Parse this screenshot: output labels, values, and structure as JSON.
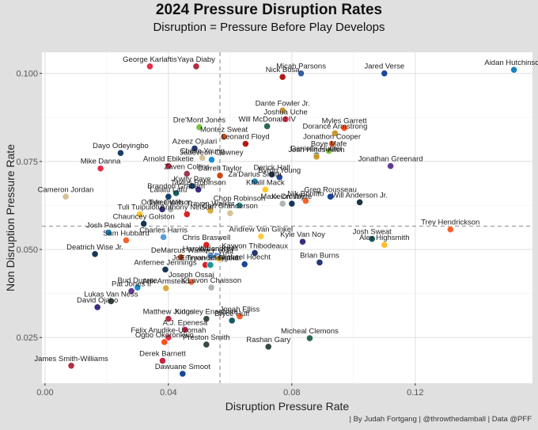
{
  "chart_data": {
    "type": "scatter",
    "title": "2024 Pressure Disruption Rates",
    "subtitle": "Disruption =  Pressure Before Play Develops",
    "xlabel": "Disruption Pressure Rate",
    "ylabel": "Non Disruption Pressure Rate",
    "caption": "| By Judah Fortgang | @throwthedamball | Data @PFF",
    "xlim": [
      -0.001,
      0.158
    ],
    "ylim": [
      0.012,
      0.106
    ],
    "x_ticks": [
      0.0,
      0.04,
      0.08,
      0.12
    ],
    "x_tick_labels": [
      "0.00",
      "0.04",
      "0.08",
      "0.12"
    ],
    "y_ticks": [
      0.025,
      0.05,
      0.075,
      0.1
    ],
    "y_tick_labels": [
      "0.025",
      "0.050",
      "0.075",
      "0.100"
    ],
    "grid": true,
    "reference_lines": {
      "x": 0.0567,
      "y": 0.0566,
      "style": "dashed"
    },
    "points": [
      {
        "name": "George Karlaftis",
        "x": 0.034,
        "y": 0.102,
        "color": "#e31837"
      },
      {
        "name": "Yaya Diaby",
        "x": 0.049,
        "y": 0.102,
        "color": "#a71930"
      },
      {
        "name": "Micah Parsons",
        "x": 0.083,
        "y": 0.1,
        "color": "#1f4e9c"
      },
      {
        "name": "Nick Bosa",
        "x": 0.077,
        "y": 0.099,
        "color": "#aa0000"
      },
      {
        "name": "Jared Verse",
        "x": 0.11,
        "y": 0.1,
        "color": "#003594"
      },
      {
        "name": "Aidan Hutchinson",
        "x": 0.152,
        "y": 0.101,
        "color": "#0076b6"
      },
      {
        "name": "Dante Fowler Jr.",
        "x": 0.077,
        "y": 0.0895,
        "color": "#c88a1a"
      },
      {
        "name": "Joshua Uche",
        "x": 0.078,
        "y": 0.087,
        "color": "#e31837"
      },
      {
        "name": "Myles Garrett",
        "x": 0.097,
        "y": 0.0845,
        "color": "#ff3c00"
      },
      {
        "name": "Dorance Armstrong",
        "x": 0.094,
        "y": 0.083,
        "color": "#c88a1a"
      },
      {
        "name": "Dre'Mont Jones",
        "x": 0.05,
        "y": 0.0847,
        "color": "#69be28"
      },
      {
        "name": "Will McDonald IV",
        "x": 0.072,
        "y": 0.085,
        "color": "#125740"
      },
      {
        "name": "Montez Sweat",
        "x": 0.058,
        "y": 0.082,
        "color": "#c83803"
      },
      {
        "name": "Leonard Floyd",
        "x": 0.065,
        "y": 0.08,
        "color": "#aa0000"
      },
      {
        "name": "Jonathon Cooper",
        "x": 0.093,
        "y": 0.08,
        "color": "#fb4f14"
      },
      {
        "name": "Boye Mafe",
        "x": 0.092,
        "y": 0.078,
        "color": "#69be28"
      },
      {
        "name": "Azeez Ojulari",
        "x": 0.0485,
        "y": 0.0787,
        "color": "#0b2265"
      },
      {
        "name": "Dayo Odeyingbo",
        "x": 0.0245,
        "y": 0.0774,
        "color": "#002c5f"
      },
      {
        "name": "Chase Young",
        "x": 0.051,
        "y": 0.076,
        "color": "#d3bc8d"
      },
      {
        "name": "Jadeveon Clowney",
        "x": 0.054,
        "y": 0.0755,
        "color": "#0085ca"
      },
      {
        "name": "Danielle Hunter",
        "x": 0.088,
        "y": 0.0767,
        "color": "#03202f"
      },
      {
        "name": "Josh Hines-Allen",
        "x": 0.088,
        "y": 0.0763,
        "color": "#d7a22a"
      },
      {
        "name": "Jonathan Greenard",
        "x": 0.112,
        "y": 0.0737,
        "color": "#4f2683"
      },
      {
        "name": "Arnold Ebiketie",
        "x": 0.04,
        "y": 0.0737,
        "color": "#a71930"
      },
      {
        "name": "Mike Danna",
        "x": 0.018,
        "y": 0.073,
        "color": "#e31837"
      },
      {
        "name": "Zaven Collins",
        "x": 0.046,
        "y": 0.0715,
        "color": "#97233f"
      },
      {
        "name": "Darrell Taylor",
        "x": 0.0567,
        "y": 0.071,
        "color": "#c83803"
      },
      {
        "name": "Derick Hall",
        "x": 0.0735,
        "y": 0.0713,
        "color": "#002244"
      },
      {
        "name": "Byron Young",
        "x": 0.076,
        "y": 0.0705,
        "color": "#003594"
      },
      {
        "name": "Za'Darius Smith",
        "x": 0.068,
        "y": 0.0693,
        "color": "#0076b6"
      },
      {
        "name": "Kwity Paye",
        "x": 0.0477,
        "y": 0.068,
        "color": "#002c5f"
      },
      {
        "name": "Khalil Mack",
        "x": 0.0714,
        "y": 0.067,
        "color": "#ffc20e"
      },
      {
        "name": "Brandon Graham",
        "x": 0.0425,
        "y": 0.066,
        "color": "#004c54"
      },
      {
        "name": "Cameron Jordan",
        "x": 0.0067,
        "y": 0.065,
        "color": "#d3bc8d"
      },
      {
        "name": "Tavius Robinson",
        "x": 0.0497,
        "y": 0.067,
        "color": "#241773"
      },
      {
        "name": "Laiatu Latu",
        "x": 0.04,
        "y": 0.065,
        "color": "#002c5f"
      },
      {
        "name": "Greg Rousseau",
        "x": 0.0925,
        "y": 0.065,
        "color": "#00338d"
      },
      {
        "name": "Chop Robinson",
        "x": 0.063,
        "y": 0.0625,
        "color": "#008e97"
      },
      {
        "name": "Nik Bonitto",
        "x": 0.0845,
        "y": 0.0638,
        "color": "#fb4f14"
      },
      {
        "name": "Keion White",
        "x": 0.08,
        "y": 0.063,
        "color": "#002244"
      },
      {
        "name": "Will Anderson Jr.",
        "x": 0.102,
        "y": 0.0634,
        "color": "#03202f"
      },
      {
        "name": "Maxx Crosby",
        "x": 0.077,
        "y": 0.063,
        "color": "#a5acaf"
      },
      {
        "name": "Tyree Wilson",
        "x": 0.0407,
        "y": 0.0614,
        "color": "#a5acaf"
      },
      {
        "name": "Travon Walker",
        "x": 0.0536,
        "y": 0.061,
        "color": "#d7a22a"
      },
      {
        "name": "Tuli Tuipulotu",
        "x": 0.0307,
        "y": 0.06,
        "color": "#ffc20e"
      },
      {
        "name": "Odafe Oweh",
        "x": 0.038,
        "y": 0.0614,
        "color": "#241773"
      },
      {
        "name": "Anthony Nelson",
        "x": 0.046,
        "y": 0.06,
        "color": "#d50a0a"
      },
      {
        "name": "Carl Granderson",
        "x": 0.06,
        "y": 0.0603,
        "color": "#d3bc8d"
      },
      {
        "name": "Chauncey Golston",
        "x": 0.032,
        "y": 0.0573,
        "color": "#041e42"
      },
      {
        "name": "Josh Paschal",
        "x": 0.0206,
        "y": 0.0548,
        "color": "#0076b6"
      },
      {
        "name": "Charles Harris",
        "x": 0.0384,
        "y": 0.0535,
        "color": "#4b92db"
      },
      {
        "name": "Andrew Van Ginkel",
        "x": 0.07,
        "y": 0.0537,
        "color": "#ffc62f"
      },
      {
        "name": "Kyle Van Noy",
        "x": 0.0835,
        "y": 0.0522,
        "color": "#241773"
      },
      {
        "name": "Josh Sweat",
        "x": 0.106,
        "y": 0.053,
        "color": "#004c54"
      },
      {
        "name": "Trey Hendrickson",
        "x": 0.1314,
        "y": 0.0557,
        "color": "#fb4f14"
      },
      {
        "name": "Alex Highsmith",
        "x": 0.11,
        "y": 0.0513,
        "color": "#ffb612"
      },
      {
        "name": "Sam Hubbard",
        "x": 0.0263,
        "y": 0.0526,
        "color": "#fb4f14"
      },
      {
        "name": "Chris Braswell",
        "x": 0.0523,
        "y": 0.0513,
        "color": "#d50a0a"
      },
      {
        "name": "Harold Landry III",
        "x": 0.0536,
        "y": 0.0482,
        "color": "#4b92db"
      },
      {
        "name": "Arden Key",
        "x": 0.0557,
        "y": 0.0482,
        "color": "#4b92db"
      },
      {
        "name": "Kayvon Thibodeaux",
        "x": 0.068,
        "y": 0.049,
        "color": "#0b2265"
      },
      {
        "name": "Brian Burns",
        "x": 0.089,
        "y": 0.0463,
        "color": "#0b2265"
      },
      {
        "name": "Deatrich Wise Jr.",
        "x": 0.0162,
        "y": 0.0487,
        "color": "#002244"
      },
      {
        "name": "DeMarcus Walker",
        "x": 0.044,
        "y": 0.0478,
        "color": "#c83803"
      },
      {
        "name": "Joe Tryon-Shoyinka",
        "x": 0.052,
        "y": 0.0456,
        "color": "#d50a0a"
      },
      {
        "name": "T.J. Watt",
        "x": 0.0564,
        "y": 0.0474,
        "color": "#ffb612"
      },
      {
        "name": "Michael Hoecht",
        "x": 0.0647,
        "y": 0.0458,
        "color": "#003594"
      },
      {
        "name": "Emmanuel Ogbah",
        "x": 0.0536,
        "y": 0.0456,
        "color": "#008e97"
      },
      {
        "name": "Anfernee Jennings",
        "x": 0.039,
        "y": 0.0443,
        "color": "#002244"
      },
      {
        "name": "Joseph Ossai",
        "x": 0.0474,
        "y": 0.0408,
        "color": "#fb4f14"
      },
      {
        "name": "Bud Dupree",
        "x": 0.03,
        "y": 0.0392,
        "color": "#0080c6"
      },
      {
        "name": "Pat Jones II",
        "x": 0.028,
        "y": 0.0382,
        "color": "#4f2683"
      },
      {
        "name": "Arik Armstead",
        "x": 0.0392,
        "y": 0.039,
        "color": "#d7a22a"
      },
      {
        "name": "K'Lavon Chaisson",
        "x": 0.0539,
        "y": 0.0392,
        "color": "#a5acaf"
      },
      {
        "name": "Lukas Van Ness",
        "x": 0.0214,
        "y": 0.0353,
        "color": "#203731"
      },
      {
        "name": "David Ojabo",
        "x": 0.017,
        "y": 0.0336,
        "color": "#241773"
      },
      {
        "name": "Kingsley Enagbare",
        "x": 0.0523,
        "y": 0.0303,
        "color": "#203731"
      },
      {
        "name": "Jonah Elliss",
        "x": 0.0631,
        "y": 0.031,
        "color": "#fb4f14"
      },
      {
        "name": "Bryce Huff",
        "x": 0.0606,
        "y": 0.0298,
        "color": "#004c54"
      },
      {
        "name": "Matthew Judon",
        "x": 0.04,
        "y": 0.0303,
        "color": "#a71930"
      },
      {
        "name": "A.J. Epenesa",
        "x": 0.0454,
        "y": 0.0272,
        "color": "#c60c30"
      },
      {
        "name": "Felix Anudike-Uzomah",
        "x": 0.04,
        "y": 0.025,
        "color": "#e31837"
      },
      {
        "name": "Micheal Clemons",
        "x": 0.0858,
        "y": 0.0248,
        "color": "#125740"
      },
      {
        "name": "Ogbo Okoronkwo",
        "x": 0.0387,
        "y": 0.0237,
        "color": "#ff3c00"
      },
      {
        "name": "Preston Smith",
        "x": 0.0523,
        "y": 0.023,
        "color": "#203731"
      },
      {
        "name": "Rashan Gary",
        "x": 0.0724,
        "y": 0.0224,
        "color": "#203731"
      },
      {
        "name": "Derek Barnett",
        "x": 0.0381,
        "y": 0.0184,
        "color": "#c60c30"
      },
      {
        "name": "James Smith-Williams",
        "x": 0.0085,
        "y": 0.017,
        "color": "#a71930"
      },
      {
        "name": "Dawuane Smoot",
        "x": 0.0446,
        "y": 0.0147,
        "color": "#00338d"
      }
    ]
  }
}
